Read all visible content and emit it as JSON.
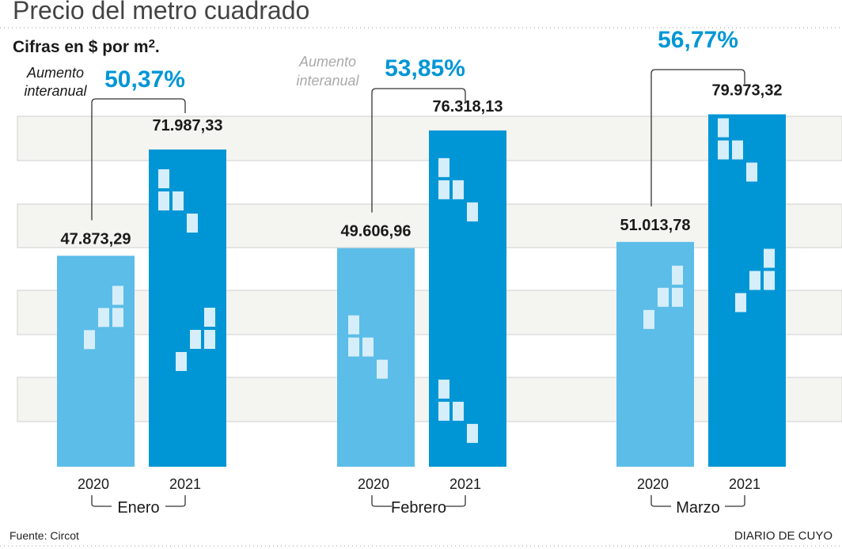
{
  "title": "Precio del metro cuadrado",
  "subtitle_prefix": "Cifras en $ por m",
  "subtitle_sup": "2",
  "subtitle_suffix": ".",
  "source": "Fuente: Circot",
  "brand": "DIARIO DE CUYO",
  "annotation_line1": "Aumento",
  "annotation_line2": "interanual",
  "colors": {
    "bar_2020": "#5bbde8",
    "bar_2021": "#0096d6",
    "percent": "#0096d6",
    "band": "#f4f4f0",
    "square": "#d6eefa"
  },
  "chart_data": {
    "type": "bar",
    "title": "Precio del metro cuadrado",
    "ylabel": "Cifras en $ por m2",
    "ylim": [
      0,
      80000
    ],
    "categories": [
      "Enero",
      "Febrero",
      "Marzo"
    ],
    "series": [
      {
        "name": "2020",
        "values": [
          47873.29,
          49606.96,
          51013.78
        ],
        "labels": [
          "47.873,29",
          "49.606,96",
          "51.013,78"
        ]
      },
      {
        "name": "2021",
        "values": [
          71987.33,
          76318.13,
          79973.32
        ],
        "labels": [
          "71.987,33",
          "76.318,13",
          "79.973,32"
        ]
      }
    ],
    "increase_labels": [
      "50,37%",
      "53,85%",
      "56,77%"
    ]
  }
}
